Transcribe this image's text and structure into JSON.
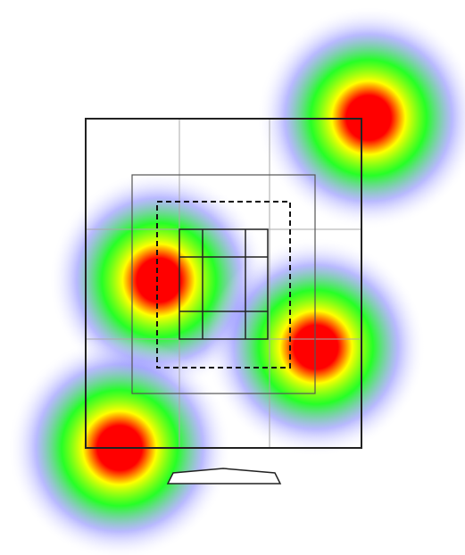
{
  "diagram": {
    "heatmap_spots": [
      {
        "name": "hotspot-top-right"
      },
      {
        "name": "hotspot-middle-left"
      },
      {
        "name": "hotspot-middle-right"
      },
      {
        "name": "hotspot-bottom-left"
      }
    ],
    "heat_colors": [
      "#ff0000",
      "#ffff00",
      "#00ff00",
      "#8080ff",
      "#ffffff"
    ]
  }
}
